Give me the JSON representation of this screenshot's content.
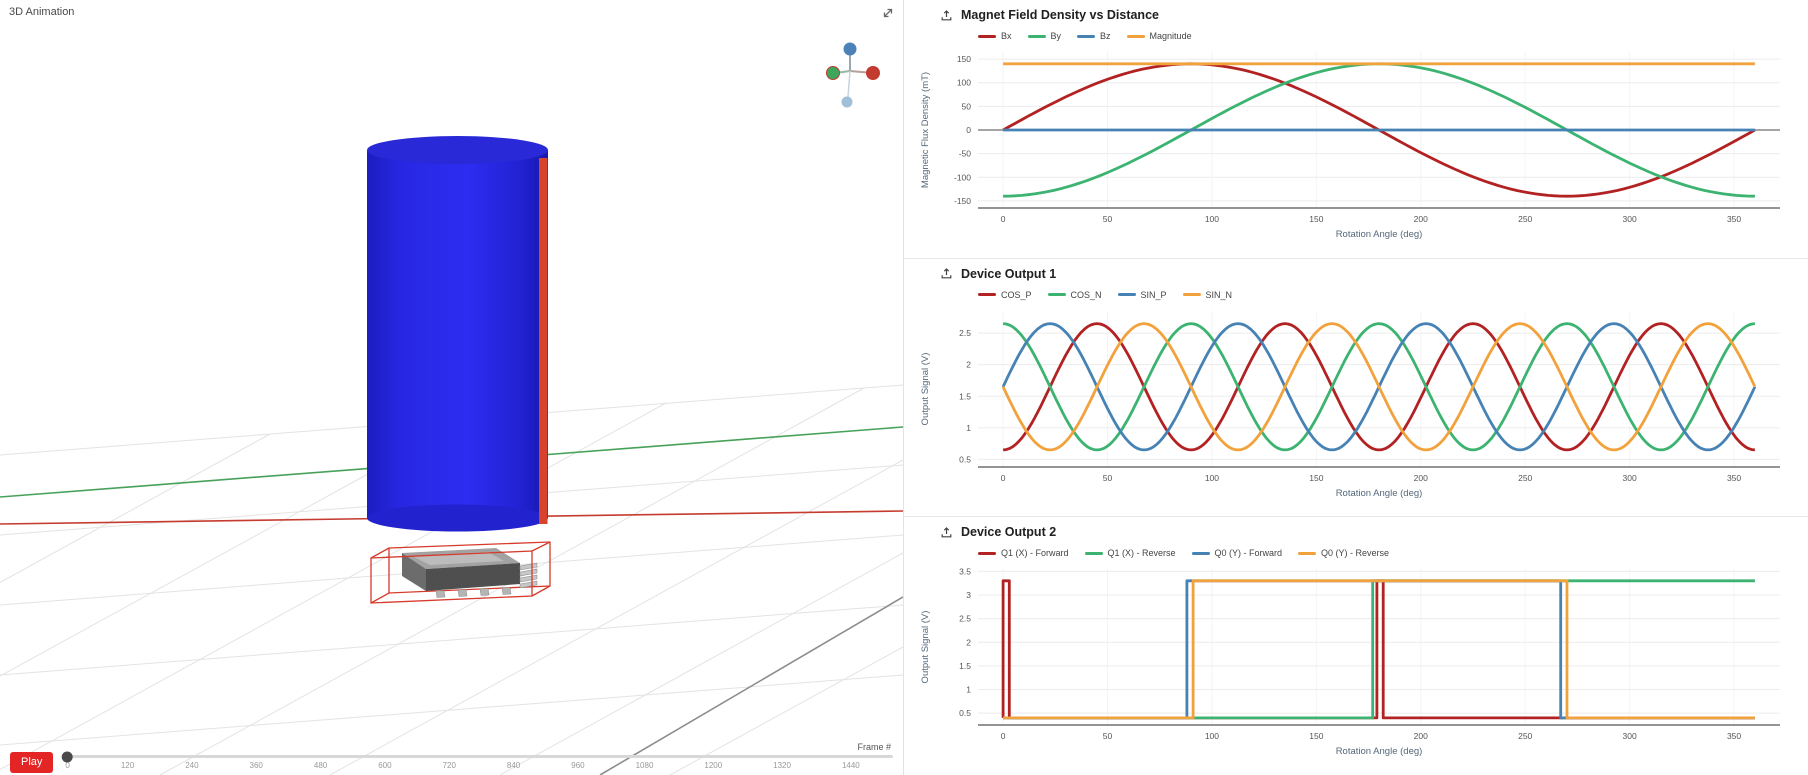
{
  "viewer": {
    "title": "3D Animation",
    "play_label": "Play",
    "frame_label": "Frame #",
    "slider": {
      "min": 0,
      "max": 1440,
      "value": 0
    },
    "frame_ticks": [
      "0",
      "120",
      "240",
      "360",
      "480",
      "600",
      "720",
      "840",
      "960",
      "1080",
      "1200",
      "1320",
      "1440"
    ],
    "colors": {
      "play_button": "#e32525",
      "magnet_body": "#2727e0",
      "magnet_stripe": "#d8432e",
      "axis_x": "#c63b2f",
      "axis_y": "#48a15a",
      "gizmo_x": "#c23b2f",
      "gizmo_y": "#3da65c",
      "gizmo_z": "#4d82b8",
      "gizmo_z_neg": "#9fc0d8"
    }
  },
  "icons": {
    "chart_action": "export-icon",
    "viewer_action": "fullscreen-icon"
  },
  "chart_data": [
    {
      "type": "line",
      "title": "Magnet Field Density vs Distance",
      "xlabel": "Rotation Angle (deg)",
      "ylabel": "Magnetic Flux Density (mT)",
      "x_range": [
        -12,
        372
      ],
      "y_range": [
        -165,
        165
      ],
      "x_ticks": [
        0,
        50,
        100,
        150,
        200,
        250,
        300,
        350
      ],
      "y_ticks": [
        -150,
        -100,
        -50,
        0,
        50,
        100,
        150
      ],
      "zero_line": true,
      "series": [
        {
          "name": "Bx",
          "color": "#b22222",
          "wave": {
            "offset": 0,
            "amplitude": 140,
            "period_deg": 360,
            "phase_deg": 0,
            "x_start": 0,
            "x_end": 360,
            "step": 3
          }
        },
        {
          "name": "By",
          "color": "#3cb371",
          "wave": {
            "offset": 0,
            "amplitude": 140,
            "period_deg": 360,
            "phase_deg": -90,
            "x_start": 0,
            "x_end": 360,
            "step": 3
          }
        },
        {
          "name": "Bz",
          "color": "#4682b4",
          "points": [
            [
              0,
              0
            ],
            [
              360,
              0
            ]
          ]
        },
        {
          "name": "Magnitude",
          "color": "#f2a23c",
          "points": [
            [
              0,
              140
            ],
            [
              360,
              140
            ]
          ]
        }
      ]
    },
    {
      "type": "line",
      "title": "Device Output 1",
      "xlabel": "Rotation Angle (deg)",
      "ylabel": "Output Signal (V)",
      "x_range": [
        -12,
        372
      ],
      "y_range": [
        0.38,
        2.85
      ],
      "x_ticks": [
        0,
        50,
        100,
        150,
        200,
        250,
        300,
        350
      ],
      "y_ticks": [
        0.5,
        1,
        1.5,
        2,
        2.5
      ],
      "zero_line": false,
      "series": [
        {
          "name": "COS_P",
          "color": "#b22222",
          "wave": {
            "offset": 1.65,
            "amplitude": 1.0,
            "period_deg": 90,
            "phase_deg": -90,
            "x_start": 0,
            "x_end": 360,
            "step": 1.5
          }
        },
        {
          "name": "COS_N",
          "color": "#3cb371",
          "wave": {
            "offset": 1.65,
            "amplitude": 1.0,
            "period_deg": 90,
            "phase_deg": 90,
            "x_start": 0,
            "x_end": 360,
            "step": 1.5
          }
        },
        {
          "name": "SIN_P",
          "color": "#4682b4",
          "wave": {
            "offset": 1.65,
            "amplitude": 1.0,
            "period_deg": 90,
            "phase_deg": 0,
            "x_start": 0,
            "x_end": 360,
            "step": 1.5
          }
        },
        {
          "name": "SIN_N",
          "color": "#f2a23c",
          "wave": {
            "offset": 1.65,
            "amplitude": 1.0,
            "period_deg": 90,
            "phase_deg": 180,
            "x_start": 0,
            "x_end": 360,
            "step": 1.5
          }
        }
      ]
    },
    {
      "type": "line",
      "title": "Device Output 2",
      "xlabel": "Rotation Angle (deg)",
      "ylabel": "Output Signal (V)",
      "x_range": [
        -12,
        372
      ],
      "y_range": [
        0.25,
        3.55
      ],
      "x_ticks": [
        0,
        50,
        100,
        150,
        200,
        250,
        300,
        350
      ],
      "y_ticks": [
        0.5,
        1,
        1.5,
        2,
        2.5,
        3,
        3.5
      ],
      "zero_line": false,
      "series": [
        {
          "name": "Q1 (X) - Forward",
          "color": "#b22222",
          "points": [
            [
              0,
              0.4
            ],
            [
              0,
              3.3
            ],
            [
              3,
              3.3
            ],
            [
              3,
              0.4
            ],
            [
              179,
              0.4
            ],
            [
              179,
              3.3
            ],
            [
              182,
              3.3
            ],
            [
              182,
              0.4
            ],
            [
              360,
              0.4
            ]
          ]
        },
        {
          "name": "Q1 (X) - Reverse",
          "color": "#3cb371",
          "points": [
            [
              0,
              0.4
            ],
            [
              177,
              0.4
            ],
            [
              177,
              3.3
            ],
            [
              360,
              3.3
            ]
          ]
        },
        {
          "name": "Q0 (Y) - Forward",
          "color": "#4682b4",
          "points": [
            [
              0,
              0.4
            ],
            [
              88,
              0.4
            ],
            [
              88,
              3.3
            ],
            [
              267,
              3.3
            ],
            [
              267,
              0.4
            ],
            [
              360,
              0.4
            ]
          ]
        },
        {
          "name": "Q0 (Y) - Reverse",
          "color": "#f2a23c",
          "points": [
            [
              0,
              0.4
            ],
            [
              91,
              0.4
            ],
            [
              91,
              3.3
            ],
            [
              270,
              3.3
            ],
            [
              270,
              0.4
            ],
            [
              360,
              0.4
            ]
          ]
        }
      ]
    }
  ]
}
